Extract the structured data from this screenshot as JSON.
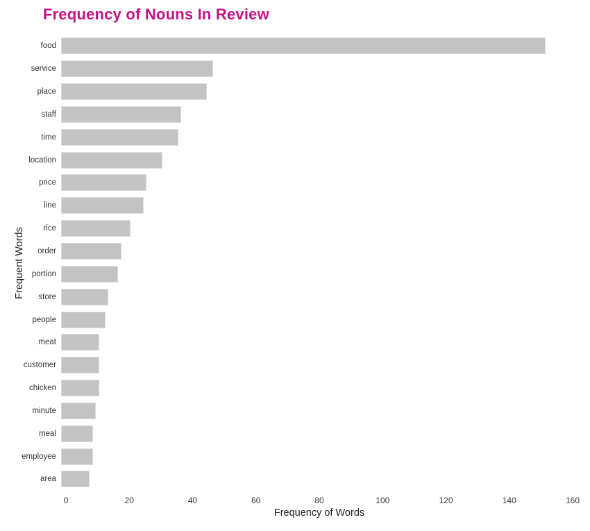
{
  "chart_data": {
    "type": "bar",
    "orientation": "horizontal",
    "title": "Frequency of Nouns In Review",
    "xlabel": "Frequency of Words",
    "ylabel": "Frequent Words",
    "categories": [
      "food",
      "service",
      "place",
      "staff",
      "time",
      "location",
      "price",
      "line",
      "rice",
      "order",
      "portion",
      "store",
      "people",
      "meat",
      "customer",
      "chicken",
      "minute",
      "meal",
      "employee",
      "area"
    ],
    "values": [
      153,
      48,
      46,
      38,
      37,
      32,
      27,
      26,
      22,
      19,
      18,
      15,
      14,
      12,
      12,
      12,
      11,
      10,
      10,
      9
    ],
    "xlim": [
      0,
      160
    ],
    "xticks": [
      0,
      20,
      40,
      60,
      80,
      100,
      120,
      140,
      160
    ],
    "grid": false,
    "legend": "none",
    "bar_color": "#c3c3c3",
    "title_color": "#c21585"
  }
}
